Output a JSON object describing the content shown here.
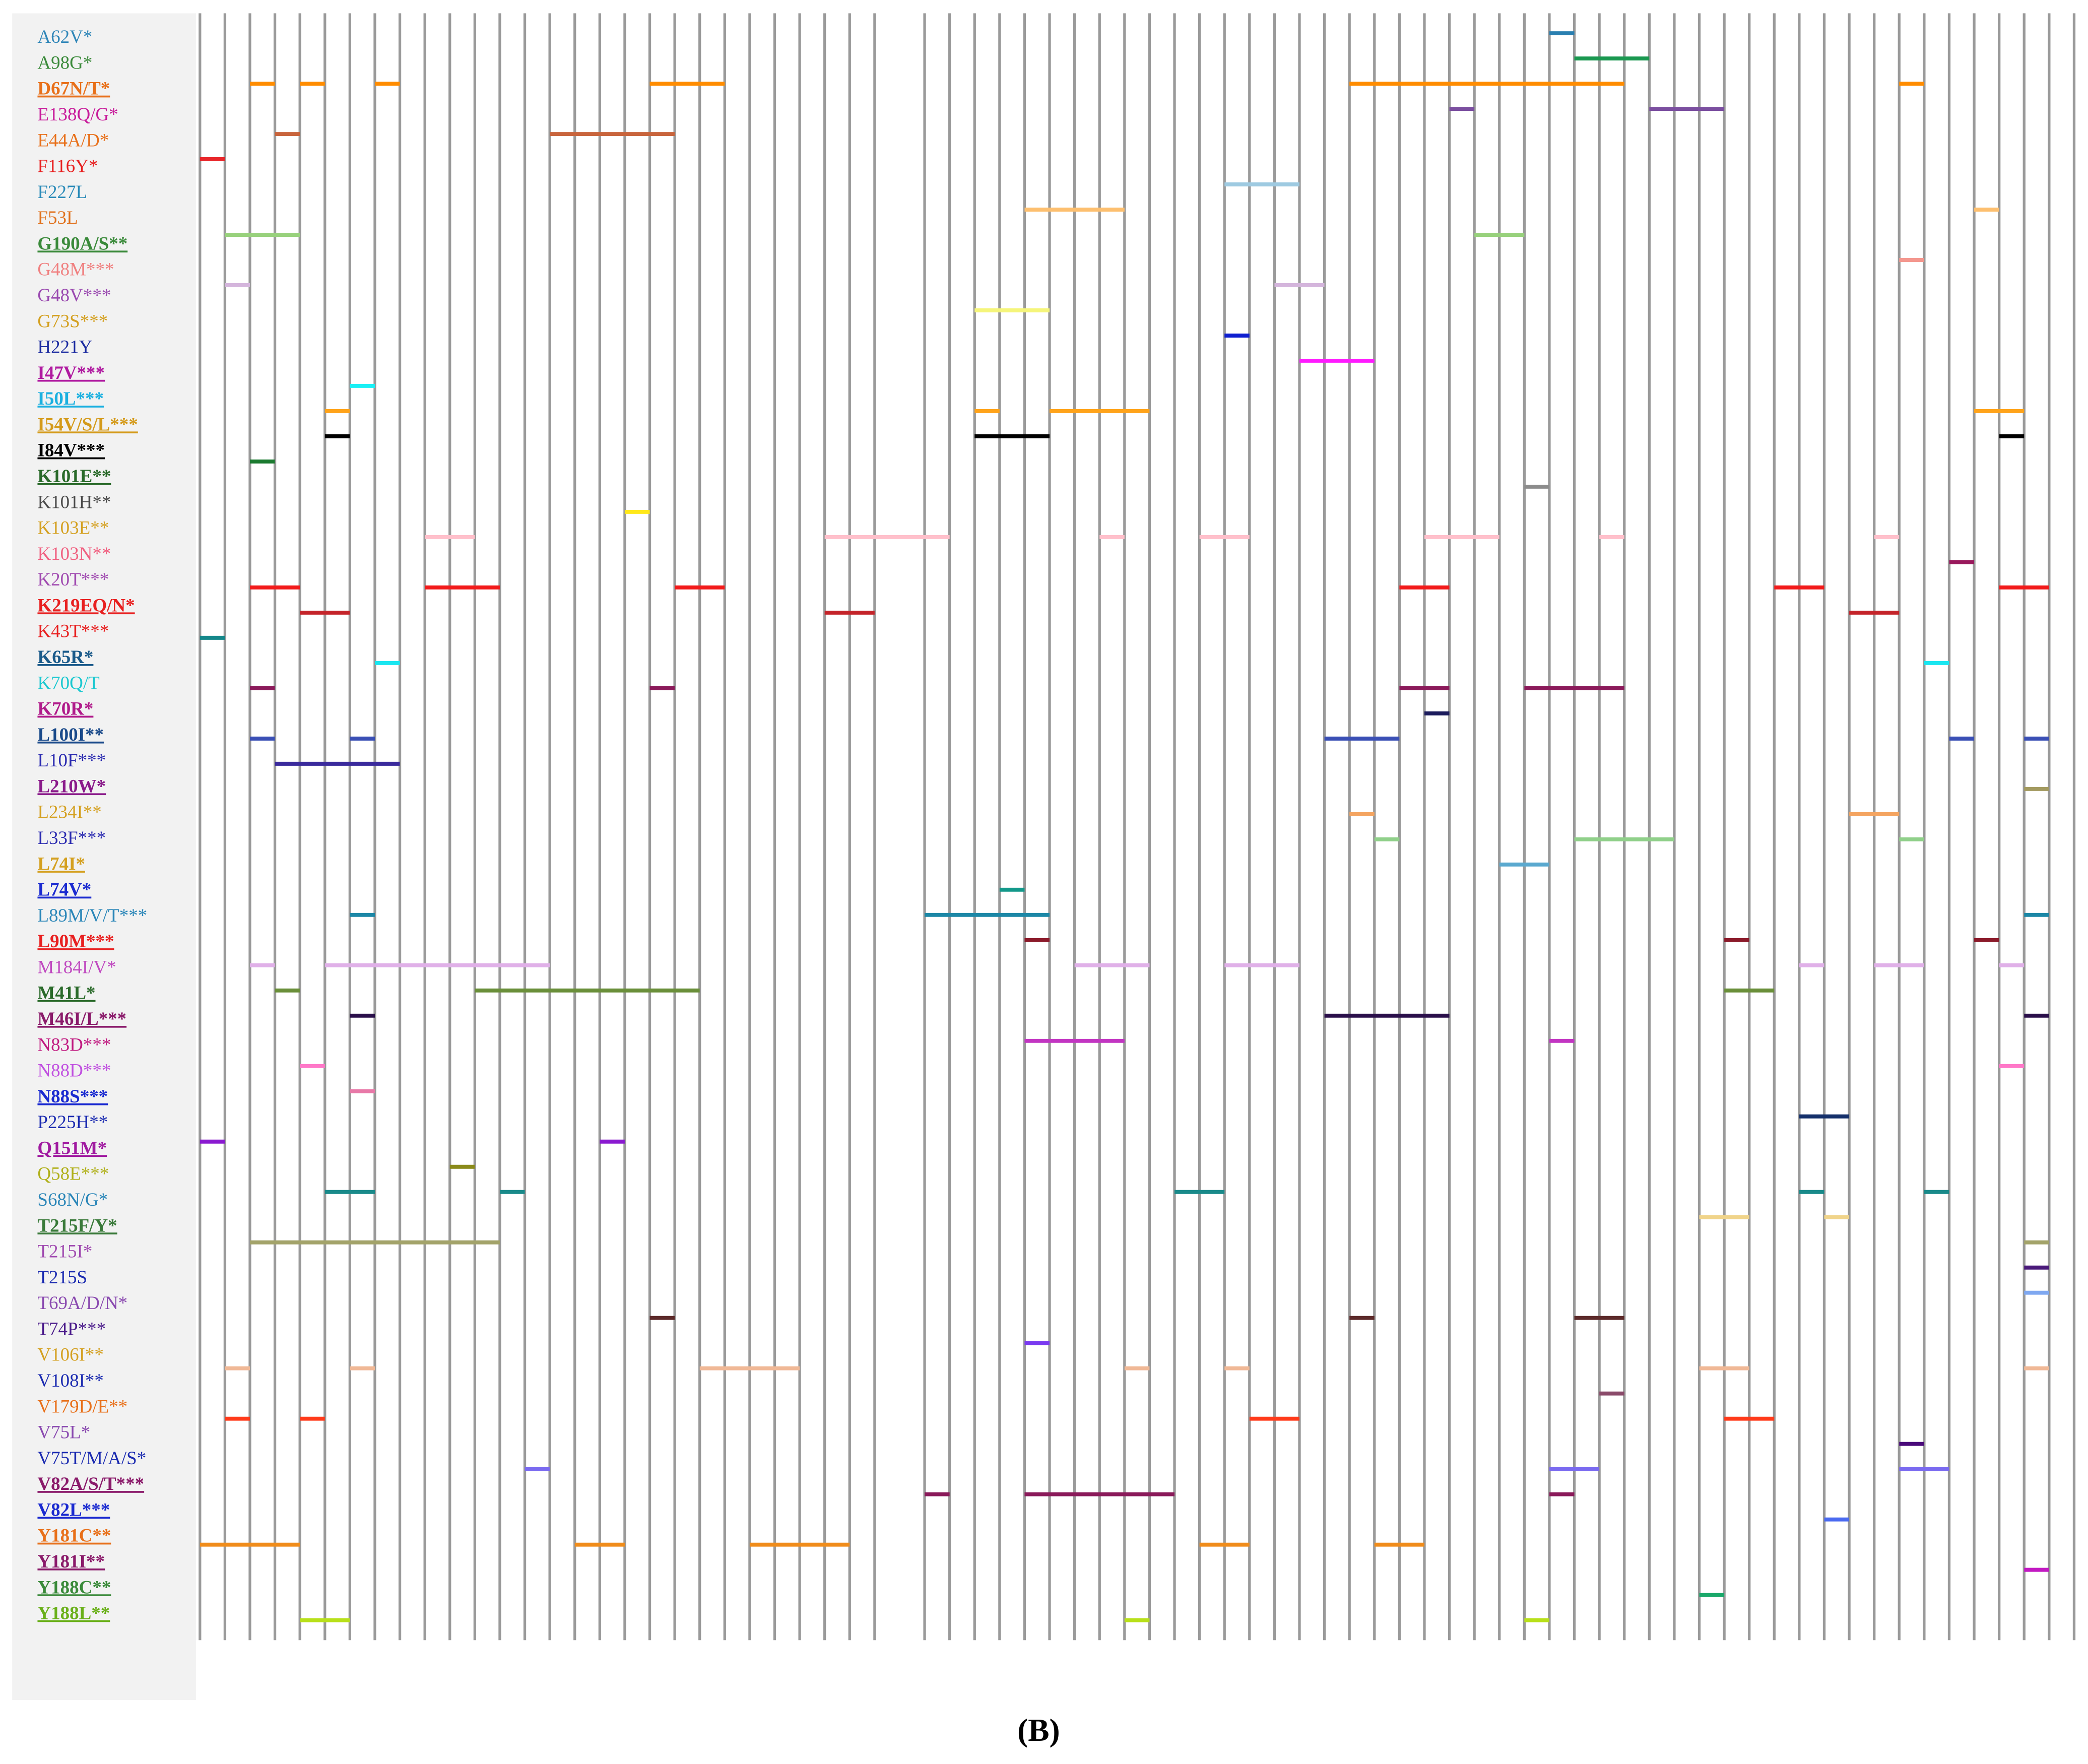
{
  "labels": [
    {
      "text": "A62V*",
      "color": "#2f86b8",
      "key": false
    },
    {
      "text": "A98G*",
      "color": "#3a8a3a",
      "key": false
    },
    {
      "text": "D67N/T*",
      "color": "#e8701a",
      "key": true
    },
    {
      "text": "E138Q/G*",
      "color": "#c81a9a",
      "key": false
    },
    {
      "text": "E44A/D*",
      "color": "#e8701a",
      "key": false
    },
    {
      "text": "F116Y*",
      "color": "#e82020",
      "key": false
    },
    {
      "text": "F227L",
      "color": "#2a8ab8",
      "key": false
    },
    {
      "text": "F53L",
      "color": "#e0701a",
      "key": false
    },
    {
      "text": "G190A/S**",
      "color": "#3a8a3a",
      "key": true
    },
    {
      "text": "G48M***",
      "color": "#f08080",
      "key": false
    },
    {
      "text": "G48V***",
      "color": "#9a4ab0",
      "key": false
    },
    {
      "text": "G73S***",
      "color": "#d4a020",
      "key": false
    },
    {
      "text": "H221Y",
      "color": "#1a2aa0",
      "key": false
    },
    {
      "text": "I47V***",
      "color": "#b01aa0",
      "key": true
    },
    {
      "text": "I50L***",
      "color": "#1ab0e0",
      "key": true
    },
    {
      "text": "I54V/S/L***",
      "color": "#d49a1a",
      "key": true
    },
    {
      "text": "I84V***",
      "color": "#000000",
      "key": true
    },
    {
      "text": "K101E**",
      "color": "#2a6a2a",
      "key": true
    },
    {
      "text": "K101H**",
      "color": "#4a4a4a",
      "key": false
    },
    {
      "text": "K103E**",
      "color": "#d4a020",
      "key": false
    },
    {
      "text": "K103N**",
      "color": "#f06080",
      "key": false
    },
    {
      "text": "K20T***",
      "color": "#a04ab0",
      "key": false
    },
    {
      "text": "K219EQ/N*",
      "color": "#e82020",
      "key": true
    },
    {
      "text": "K43T***",
      "color": "#e82020",
      "key": false
    },
    {
      "text": "K65R*",
      "color": "#1a5a8a",
      "key": true
    },
    {
      "text": "K70Q/T",
      "color": "#1ac8d0",
      "key": false
    },
    {
      "text": "K70R*",
      "color": "#b01a8a",
      "key": true
    },
    {
      "text": "L100I**",
      "color": "#1a4a8a",
      "key": true
    },
    {
      "text": "L10F***",
      "color": "#2a2ab0",
      "key": false
    },
    {
      "text": "L210W*",
      "color": "#8a1a8a",
      "key": true
    },
    {
      "text": "L234I**",
      "color": "#d4a020",
      "key": false
    },
    {
      "text": "L33F***",
      "color": "#2a2ab0",
      "key": false
    },
    {
      "text": "L74I*",
      "color": "#d4a020",
      "key": true
    },
    {
      "text": "L74V*",
      "color": "#1a2ad0",
      "key": true
    },
    {
      "text": "L89M/V/T***",
      "color": "#2a86b8",
      "key": false
    },
    {
      "text": "L90M***",
      "color": "#e82020",
      "key": true
    },
    {
      "text": "M184I/V*",
      "color": "#c04ac0",
      "key": false
    },
    {
      "text": "M41L*",
      "color": "#2a6a2a",
      "key": true
    },
    {
      "text": "M46I/L***",
      "color": "#8a1a6a",
      "key": true
    },
    {
      "text": "N83D***",
      "color": "#c01a80",
      "key": false
    },
    {
      "text": "N88D***",
      "color": "#c050e0",
      "key": false
    },
    {
      "text": "N88S***",
      "color": "#1a2ad0",
      "key": true
    },
    {
      "text": "P225H**",
      "color": "#1a2ab0",
      "key": false
    },
    {
      "text": "Q151M*",
      "color": "#a01aa0",
      "key": true
    },
    {
      "text": "Q58E***",
      "color": "#b0b01a",
      "key": false
    },
    {
      "text": "S68N/G*",
      "color": "#2a86b8",
      "key": false
    },
    {
      "text": "T215F/Y*",
      "color": "#3a7a3a",
      "key": true
    },
    {
      "text": "T215I*",
      "color": "#a04ab0",
      "key": false
    },
    {
      "text": "T215S",
      "color": "#1a2ab0",
      "key": false
    },
    {
      "text": "T69A/D/N*",
      "color": "#8a4ab0",
      "key": false
    },
    {
      "text": "T74P***",
      "color": "#4a1a8a",
      "key": false
    },
    {
      "text": "V106I**",
      "color": "#d4a020",
      "key": false
    },
    {
      "text": "V108I**",
      "color": "#1a2ab0",
      "key": false
    },
    {
      "text": "V179D/E**",
      "color": "#e8701a",
      "key": false
    },
    {
      "text": "V75L*",
      "color": "#8a4ab0",
      "key": false
    },
    {
      "text": "V75T/M/A/S*",
      "color": "#1a2ab0",
      "key": false
    },
    {
      "text": "V82A/S/T***",
      "color": "#8a1a6a",
      "key": true
    },
    {
      "text": "V82L***",
      "color": "#1a2ad0",
      "key": true
    },
    {
      "text": "Y181C**",
      "color": "#e8701a",
      "key": true
    },
    {
      "text": "Y181I**",
      "color": "#8a1a6a",
      "key": true
    },
    {
      "text": "Y188C**",
      "color": "#3a8a3a",
      "key": true
    },
    {
      "text": "Y188L**",
      "color": "#6ab01a",
      "key": true
    }
  ],
  "tracks": [
    {
      "color": "#2a7fb0",
      "spans": [
        [
          54,
          55
        ]
      ]
    },
    {
      "color": "#1a9850",
      "spans": [
        [
          55,
          58
        ]
      ]
    },
    {
      "color": "#ff8c00",
      "spans": [
        [
          2,
          3
        ],
        [
          4,
          5
        ],
        [
          7,
          8
        ],
        [
          18,
          21
        ],
        [
          46,
          57
        ],
        [
          68,
          69
        ]
      ]
    },
    {
      "color": "#7b4fa0",
      "spans": [
        [
          50,
          51
        ],
        [
          58,
          61
        ]
      ]
    },
    {
      "color": "#c8643c",
      "spans": [
        [
          3,
          4
        ],
        [
          14,
          19
        ]
      ]
    },
    {
      "color": "#e8262a",
      "spans": [
        [
          0,
          1
        ]
      ]
    },
    {
      "color": "#9ecae1",
      "spans": [
        [
          41,
          44
        ]
      ]
    },
    {
      "color": "#fdbf6f",
      "spans": [
        [
          33,
          37
        ],
        [
          71,
          72
        ]
      ]
    },
    {
      "color": "#98d17c",
      "spans": [
        [
          1,
          4
        ],
        [
          51,
          53
        ]
      ]
    },
    {
      "color": "#f4978e",
      "spans": [
        [
          68,
          69
        ]
      ]
    },
    {
      "color": "#d4b5dc",
      "spans": [
        [
          1,
          2
        ],
        [
          43,
          45
        ]
      ]
    },
    {
      "color": "#f5f57a",
      "spans": [
        [
          31,
          34
        ]
      ]
    },
    {
      "color": "#0f1fd0",
      "spans": [
        [
          41,
          42
        ]
      ]
    },
    {
      "color": "#ff1aff",
      "spans": [
        [
          44,
          47
        ]
      ]
    },
    {
      "color": "#19f0f5",
      "spans": [
        [
          6,
          7
        ]
      ]
    },
    {
      "color": "#ffa31a",
      "spans": [
        [
          5,
          6
        ],
        [
          31,
          32
        ],
        [
          34,
          38
        ],
        [
          71,
          73
        ]
      ]
    },
    {
      "color": "#000000",
      "spans": [
        [
          5,
          6
        ],
        [
          31,
          34
        ],
        [
          72,
          73
        ]
      ]
    },
    {
      "color": "#1b7a2f",
      "spans": [
        [
          2,
          3
        ]
      ]
    },
    {
      "color": "#8c8c8c",
      "spans": [
        [
          53,
          54
        ]
      ]
    },
    {
      "color": "#ffe81a",
      "spans": [
        [
          17,
          18
        ]
      ]
    },
    {
      "color": "#ffc0cb",
      "spans": [
        [
          9,
          11
        ],
        [
          25,
          30
        ],
        [
          36,
          37
        ],
        [
          40,
          42
        ],
        [
          49,
          52
        ],
        [
          56,
          57
        ],
        [
          67,
          68
        ]
      ]
    },
    {
      "color": "#99195c",
      "spans": [
        [
          70,
          71
        ]
      ]
    },
    {
      "color": "#f21b1b",
      "spans": [
        [
          2,
          4
        ],
        [
          9,
          12
        ],
        [
          19,
          21
        ],
        [
          48,
          50
        ],
        [
          63,
          65
        ],
        [
          72,
          74
        ]
      ]
    },
    {
      "color": "#c4242a",
      "spans": [
        [
          4,
          6
        ],
        [
          25,
          27
        ],
        [
          66,
          68
        ]
      ]
    },
    {
      "color": "#14878a",
      "spans": [
        [
          0,
          1
        ]
      ]
    },
    {
      "color": "#1ae6f0",
      "spans": [
        [
          7,
          8
        ],
        [
          69,
          70
        ]
      ]
    },
    {
      "color": "#8b1a5a",
      "spans": [
        [
          2,
          3
        ],
        [
          18,
          19
        ],
        [
          48,
          50
        ],
        [
          53,
          57
        ]
      ]
    },
    {
      "color": "#1c1c5c",
      "spans": [
        [
          49,
          50
        ]
      ]
    },
    {
      "color": "#3a4fb5",
      "spans": [
        [
          2,
          3
        ],
        [
          6,
          7
        ],
        [
          45,
          48
        ],
        [
          70,
          71
        ],
        [
          73,
          74
        ]
      ]
    },
    {
      "color": "#3a2a9c",
      "spans": [
        [
          3,
          8
        ]
      ]
    },
    {
      "color": "#a39a60",
      "spans": [
        [
          73,
          74
        ]
      ]
    },
    {
      "color": "#f4a460",
      "spans": [
        [
          46,
          47
        ],
        [
          66,
          68
        ]
      ]
    },
    {
      "color": "#90d08a",
      "spans": [
        [
          47,
          48
        ],
        [
          55,
          59
        ],
        [
          68,
          69
        ]
      ]
    },
    {
      "color": "#5aa9cf",
      "spans": [
        [
          52,
          54
        ]
      ]
    },
    {
      "color": "#13988a",
      "spans": [
        [
          32,
          33
        ]
      ]
    },
    {
      "color": "#1c87a6",
      "spans": [
        [
          6,
          7
        ],
        [
          29,
          34
        ],
        [
          73,
          74
        ]
      ]
    },
    {
      "color": "#8b1a2a",
      "spans": [
        [
          33,
          34
        ],
        [
          61,
          62
        ],
        [
          71,
          72
        ]
      ]
    },
    {
      "color": "#e0b0e8",
      "spans": [
        [
          2,
          3
        ],
        [
          5,
          14
        ],
        [
          35,
          38
        ],
        [
          41,
          44
        ],
        [
          64,
          65
        ],
        [
          67,
          69
        ],
        [
          72,
          73
        ]
      ]
    },
    {
      "color": "#6a8f3a",
      "spans": [
        [
          3,
          4
        ],
        [
          11,
          20
        ],
        [
          61,
          63
        ]
      ]
    },
    {
      "color": "#2a0f4a",
      "spans": [
        [
          6,
          7
        ],
        [
          45,
          50
        ],
        [
          73,
          74
        ]
      ]
    },
    {
      "color": "#c235c2",
      "spans": [
        [
          33,
          37
        ],
        [
          54,
          55
        ]
      ]
    },
    {
      "color": "#ff78c8",
      "spans": [
        [
          4,
          5
        ],
        [
          72,
          73
        ]
      ]
    },
    {
      "color": "#e879a8",
      "spans": [
        [
          6,
          7
        ]
      ]
    },
    {
      "color": "#15306b",
      "spans": [
        [
          64,
          66
        ]
      ]
    },
    {
      "color": "#8a1ad0",
      "spans": [
        [
          0,
          1
        ],
        [
          16,
          17
        ]
      ]
    },
    {
      "color": "#8a8a1a",
      "spans": [
        [
          10,
          11
        ]
      ]
    },
    {
      "color": "#1a8a8a",
      "spans": [
        [
          5,
          7
        ],
        [
          12,
          13
        ],
        [
          39,
          41
        ],
        [
          64,
          65
        ],
        [
          69,
          70
        ]
      ]
    },
    {
      "color": "#f0d48a",
      "spans": [
        [
          60,
          62
        ],
        [
          65,
          66
        ]
      ]
    },
    {
      "color": "#a3a36a",
      "spans": [
        [
          2,
          12
        ],
        [
          73,
          74
        ]
      ]
    },
    {
      "color": "#4a1a7a",
      "spans": [
        [
          73,
          74
        ]
      ]
    },
    {
      "color": "#7fa8f0",
      "spans": [
        [
          73,
          74
        ]
      ]
    },
    {
      "color": "#5c2a2a",
      "spans": [
        [
          18,
          19
        ],
        [
          46,
          47
        ],
        [
          55,
          57
        ]
      ]
    },
    {
      "color": "#7a3af0",
      "spans": [
        [
          33,
          34
        ]
      ]
    },
    {
      "color": "#f0b896",
      "spans": [
        [
          1,
          2
        ],
        [
          6,
          7
        ],
        [
          20,
          24
        ],
        [
          37,
          38
        ],
        [
          41,
          42
        ],
        [
          60,
          62
        ],
        [
          73,
          74
        ]
      ]
    },
    {
      "color": "#8a4a6a",
      "spans": [
        [
          56,
          57
        ]
      ]
    },
    {
      "color": "#ff3a1a",
      "spans": [
        [
          1,
          2
        ],
        [
          4,
          5
        ],
        [
          42,
          44
        ],
        [
          61,
          63
        ]
      ]
    },
    {
      "color": "#4a0a7a",
      "spans": [
        [
          68,
          69
        ]
      ]
    },
    {
      "color": "#7a6af0",
      "spans": [
        [
          13,
          14
        ],
        [
          54,
          56
        ],
        [
          68,
          70
        ]
      ]
    },
    {
      "color": "#8a1a5a",
      "spans": [
        [
          29,
          30
        ],
        [
          33,
          39
        ],
        [
          54,
          55
        ]
      ]
    },
    {
      "color": "#4a6af0",
      "spans": [
        [
          65,
          66
        ]
      ]
    },
    {
      "color": "#f08c1a",
      "spans": [
        [
          0,
          4
        ],
        [
          15,
          17
        ],
        [
          22,
          26
        ],
        [
          40,
          42
        ],
        [
          47,
          49
        ]
      ]
    },
    {
      "color": "#c21ac2",
      "spans": [
        [
          73,
          74
        ]
      ]
    },
    {
      "color": "#1aa86a",
      "spans": [
        [
          60,
          61
        ]
      ]
    },
    {
      "color": "#b8e01a",
      "spans": [
        [
          4,
          6
        ],
        [
          37,
          38
        ],
        [
          53,
          54
        ]
      ]
    }
  ],
  "caption": "(B)"
}
